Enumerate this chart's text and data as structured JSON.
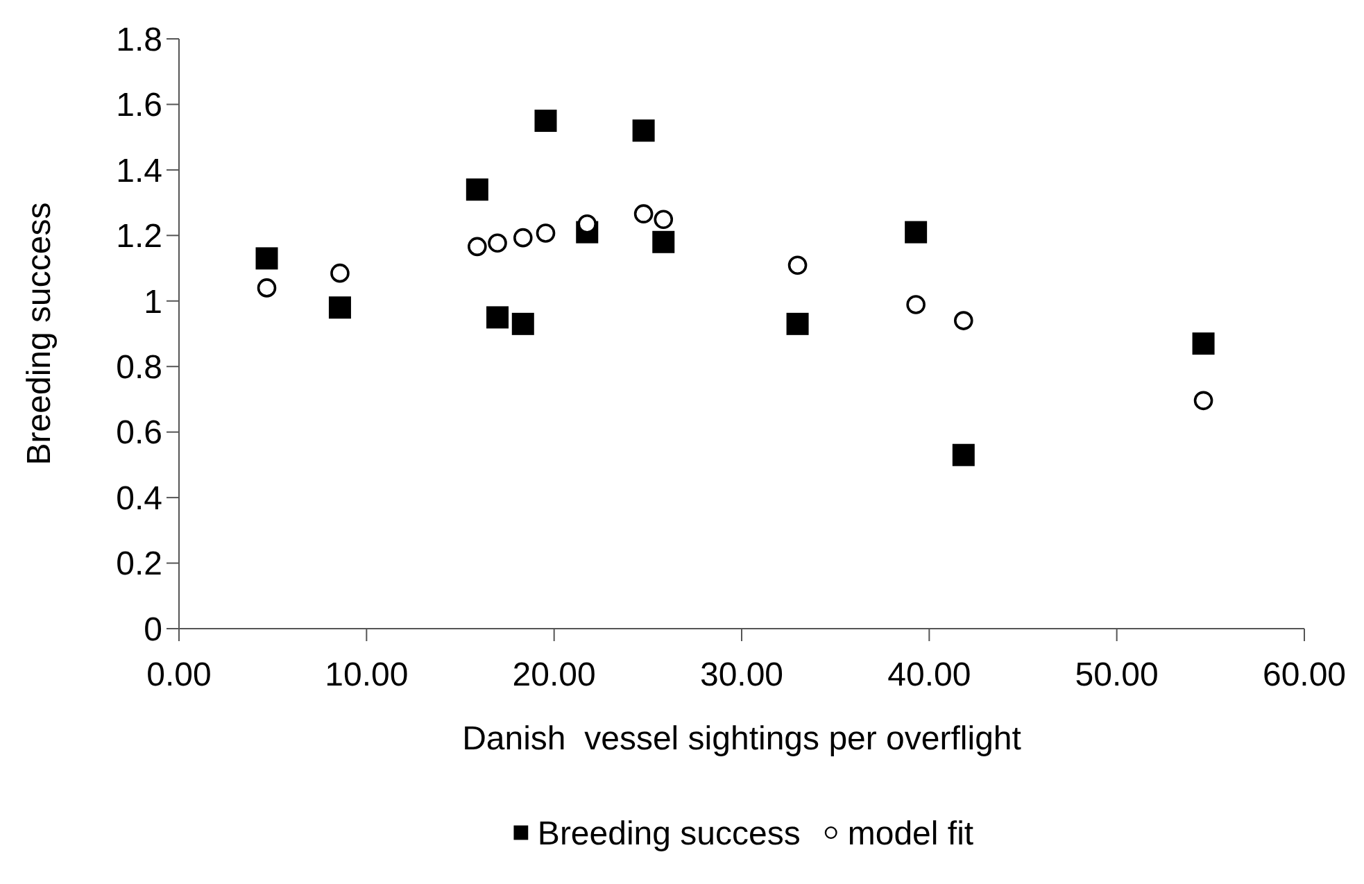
{
  "chart_data": {
    "type": "scatter",
    "xlabel": "Danish  vessel sightings per overflight",
    "ylabel": "Breeding success",
    "xlim": [
      0,
      60
    ],
    "xticks": [
      {
        "value": 0,
        "label": "0.00"
      },
      {
        "value": 10,
        "label": "10.00"
      },
      {
        "value": 20,
        "label": "20.00"
      },
      {
        "value": 30,
        "label": "30.00"
      },
      {
        "value": 40,
        "label": "40.00"
      },
      {
        "value": 50,
        "label": "50.00"
      },
      {
        "value": 60,
        "label": "60.00"
      }
    ],
    "ylim": [
      0,
      1.8
    ],
    "yticks": [
      0,
      0.2,
      0.4,
      0.6,
      0.8,
      1,
      1.2,
      1.4,
      1.6,
      1.8
    ],
    "legend": "bottom",
    "series": [
      {
        "name": "Breeding success",
        "color": "#000000",
        "marker": "square",
        "x": [
          4.68,
          8.58,
          15.9,
          16.98,
          18.34,
          19.55,
          21.76,
          24.77,
          25.83,
          32.98,
          39.29,
          41.83,
          54.62
        ],
        "values": [
          1.13,
          0.98,
          1.34,
          0.95,
          0.93,
          1.55,
          1.21,
          1.52,
          1.18,
          0.93,
          1.21,
          0.53,
          0.87
        ]
      },
      {
        "name": "model fit",
        "color": "#000000",
        "marker": "circle",
        "x": [
          4.68,
          8.58,
          15.9,
          16.98,
          18.34,
          19.55,
          21.76,
          24.77,
          25.83,
          32.98,
          39.29,
          41.83,
          54.62
        ],
        "values": [
          1.04,
          1.085,
          1.166,
          1.177,
          1.193,
          1.207,
          1.235,
          1.266,
          1.249,
          1.109,
          0.989,
          0.94,
          0.696
        ]
      }
    ]
  }
}
